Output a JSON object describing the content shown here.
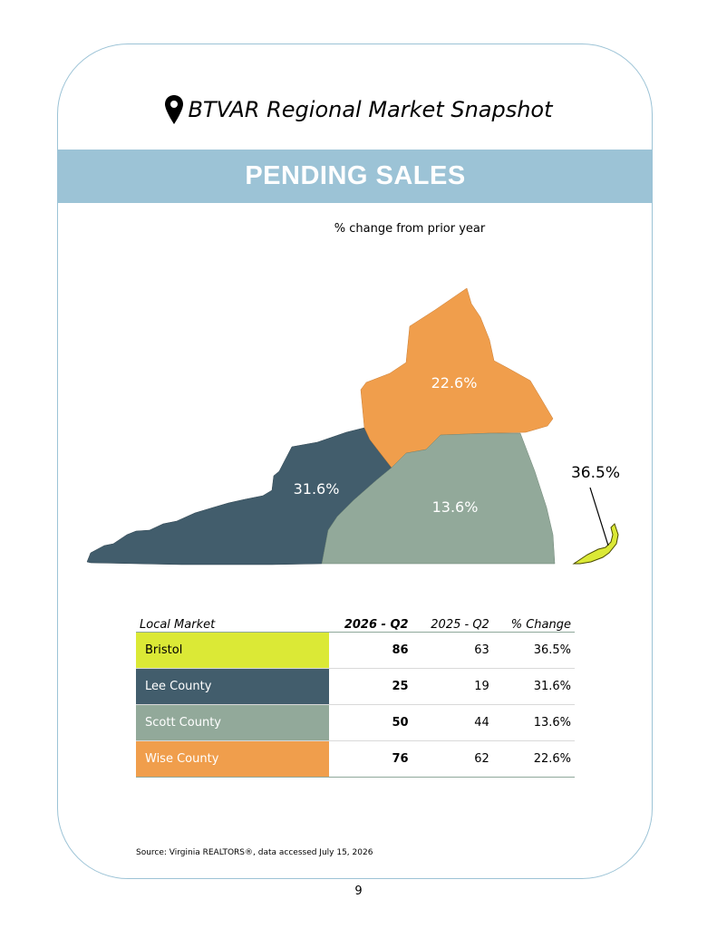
{
  "header": {
    "title": "BTVAR Regional Market Snapshot",
    "icon": "map-pin-icon"
  },
  "banner": {
    "title": "PENDING SALES",
    "color": "#9cc3d6"
  },
  "map": {
    "subtitle": "% change from prior year",
    "regions": [
      {
        "name": "Wise County",
        "label": "22.6%",
        "color": "#f09e4c"
      },
      {
        "name": "Lee County",
        "label": "31.6%",
        "color": "#425d6c"
      },
      {
        "name": "Scott County",
        "label": "13.6%",
        "color": "#92a99a"
      },
      {
        "name": "Bristol",
        "label": "36.5%",
        "color": "#dbe936"
      }
    ]
  },
  "table": {
    "headers": [
      "Local Market",
      "2026 - Q2",
      "2025 - Q2",
      "% Change"
    ],
    "rows": [
      {
        "name": "Bristol",
        "current": "86",
        "prior": "63",
        "change": "36.5%",
        "color": "#dbe936",
        "text_color": "#000000"
      },
      {
        "name": "Lee County",
        "current": "25",
        "prior": "19",
        "change": "31.6%",
        "color": "#425d6c",
        "text_color": "#ffffff"
      },
      {
        "name": "Scott County",
        "current": "50",
        "prior": "44",
        "change": "13.6%",
        "color": "#92a99a",
        "text_color": "#ffffff"
      },
      {
        "name": "Wise County",
        "current": "76",
        "prior": "62",
        "change": "22.6%",
        "color": "#f09e4c",
        "text_color": "#ffffff"
      }
    ]
  },
  "source": "Source: Virginia REALTORS®, data accessed July 15, 2026",
  "page_number": "9"
}
